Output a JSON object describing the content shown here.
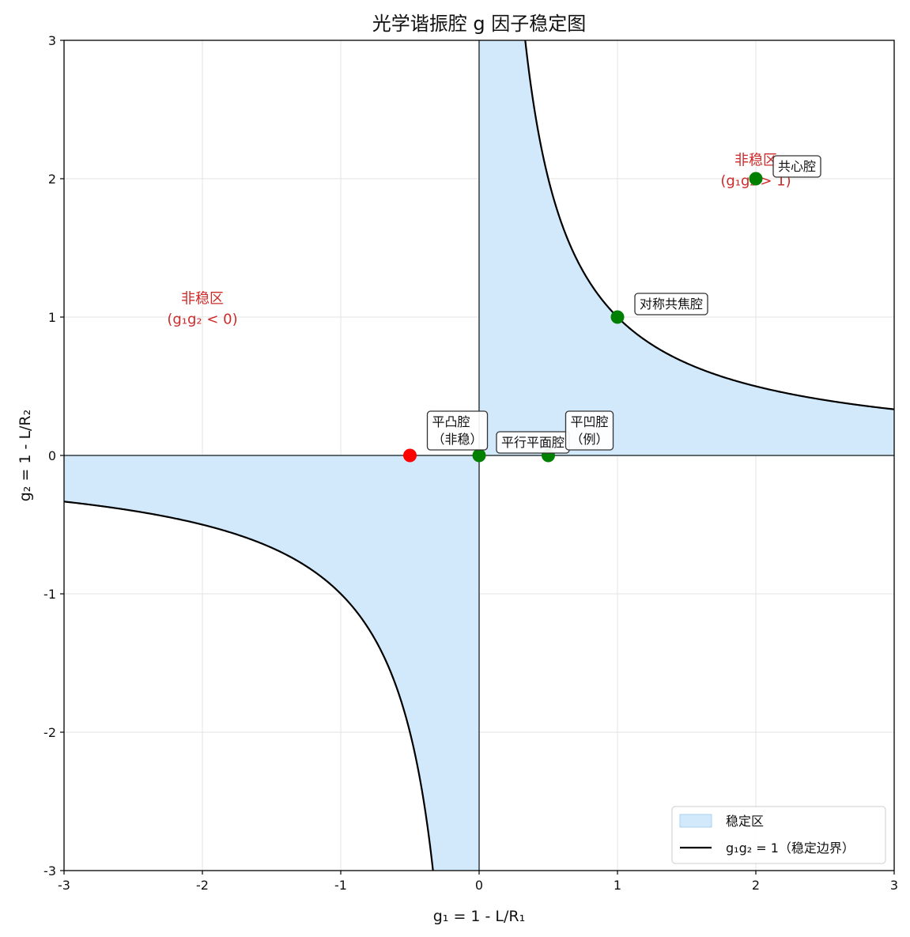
{
  "chart_data": {
    "type": "area",
    "title": "光学谐振腔 g 因子稳定图",
    "xlabel": "g₁ = 1 - L/R₁",
    "ylabel": "g₂ = 1 - L/R₂",
    "xlim": [
      -3,
      3
    ],
    "ylim": [
      -3,
      3
    ],
    "xticks": [
      -3,
      -2,
      -1,
      0,
      1,
      2,
      3
    ],
    "yticks": [
      -3,
      -2,
      -1,
      0,
      1,
      2,
      3
    ],
    "xtick_labels": [
      "-3",
      "-2",
      "-1",
      "0",
      "1",
      "2",
      "3"
    ],
    "ytick_labels": [
      "-3",
      "-2",
      "-1",
      "0",
      "1",
      "2",
      "3"
    ],
    "grid": true,
    "legend_position": "lower-right",
    "series": [
      {
        "name": "稳定区",
        "kind": "fill",
        "condition": "0 ≤ g₁g₂ ≤ 1",
        "color": "#d2e8fb"
      },
      {
        "name": "g₁g₂ = 1（稳定边界）",
        "kind": "curve",
        "equation": "g₂ = 1 / g₁",
        "color": "#000000"
      }
    ],
    "points": [
      {
        "label": "对称共焦腔",
        "x": 1,
        "y": 1,
        "color": "#008000"
      },
      {
        "label": "共心腔",
        "x": 2,
        "y": 2,
        "color": "#008000"
      },
      {
        "label": "平行平面腔",
        "x": 0,
        "y": 0,
        "color": "#008000"
      },
      {
        "label": "平凹腔\n（例）",
        "x": 0.5,
        "y": 0,
        "color": "#008000"
      },
      {
        "label": "平凸腔\n（非稳）",
        "x": -0.5,
        "y": 0,
        "color": "#ff0000"
      }
    ],
    "region_labels": [
      {
        "text": "非稳区\n(g₁g₂ > 1)",
        "x": 2,
        "y": 2.1
      },
      {
        "text": "非稳区\n(g₁g₂ < 0)",
        "x": -2,
        "y": 1.1
      }
    ]
  }
}
